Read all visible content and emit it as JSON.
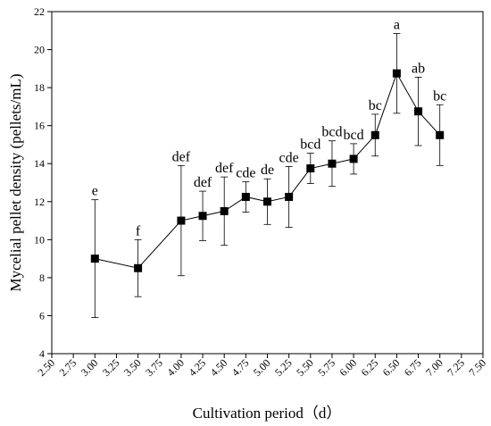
{
  "chart_data": {
    "type": "line",
    "xlabel": "Cultivation period（d）",
    "ylabel": "Mycelial pellet density (pellets/mL)",
    "xlim": [
      2.5,
      7.5
    ],
    "ylim": [
      4,
      22
    ],
    "x_ticks": [
      2.5,
      2.75,
      3.0,
      3.25,
      3.5,
      3.75,
      4.0,
      4.25,
      4.5,
      4.75,
      5.0,
      5.25,
      5.5,
      5.75,
      6.0,
      6.25,
      6.5,
      6.75,
      7.0,
      7.25,
      7.5
    ],
    "x_tick_labels": [
      "2.50",
      "2.75",
      "3.00",
      "3.25",
      "3.50",
      "3.75",
      "4.00",
      "4.25",
      "4.50",
      "4.75",
      "5.00",
      "5.25",
      "5.50",
      "5.75",
      "6.00",
      "6.25",
      "6.50",
      "6.75",
      "7.00",
      "7.25",
      "7.50"
    ],
    "y_ticks": [
      4,
      6,
      8,
      10,
      12,
      14,
      16,
      18,
      20,
      22
    ],
    "y_tick_labels": [
      "4",
      "6",
      "8",
      "10",
      "12",
      "14",
      "16",
      "18",
      "20",
      "22"
    ],
    "grid": false,
    "marker": "square",
    "series": [
      {
        "x": [
          3.0,
          3.5,
          4.0,
          4.25,
          4.5,
          4.75,
          5.0,
          5.25,
          5.5,
          5.75,
          6.0,
          6.25,
          6.5,
          6.75,
          7.0
        ],
        "y": [
          9.0,
          8.5,
          11.0,
          11.25,
          11.5,
          12.25,
          12.0,
          12.25,
          13.75,
          14.0,
          14.25,
          15.5,
          18.75,
          16.75,
          15.5
        ],
        "error": [
          3.1,
          1.5,
          2.9,
          1.3,
          1.8,
          0.8,
          1.2,
          1.6,
          0.8,
          1.2,
          0.8,
          1.1,
          2.1,
          1.8,
          1.6
        ],
        "labels": [
          "e",
          "f",
          "def",
          "def",
          "def",
          "cde",
          "de",
          "cde",
          "bcd",
          "bcd",
          "bcd",
          "bc",
          "a",
          "ab",
          "bc"
        ]
      }
    ]
  }
}
